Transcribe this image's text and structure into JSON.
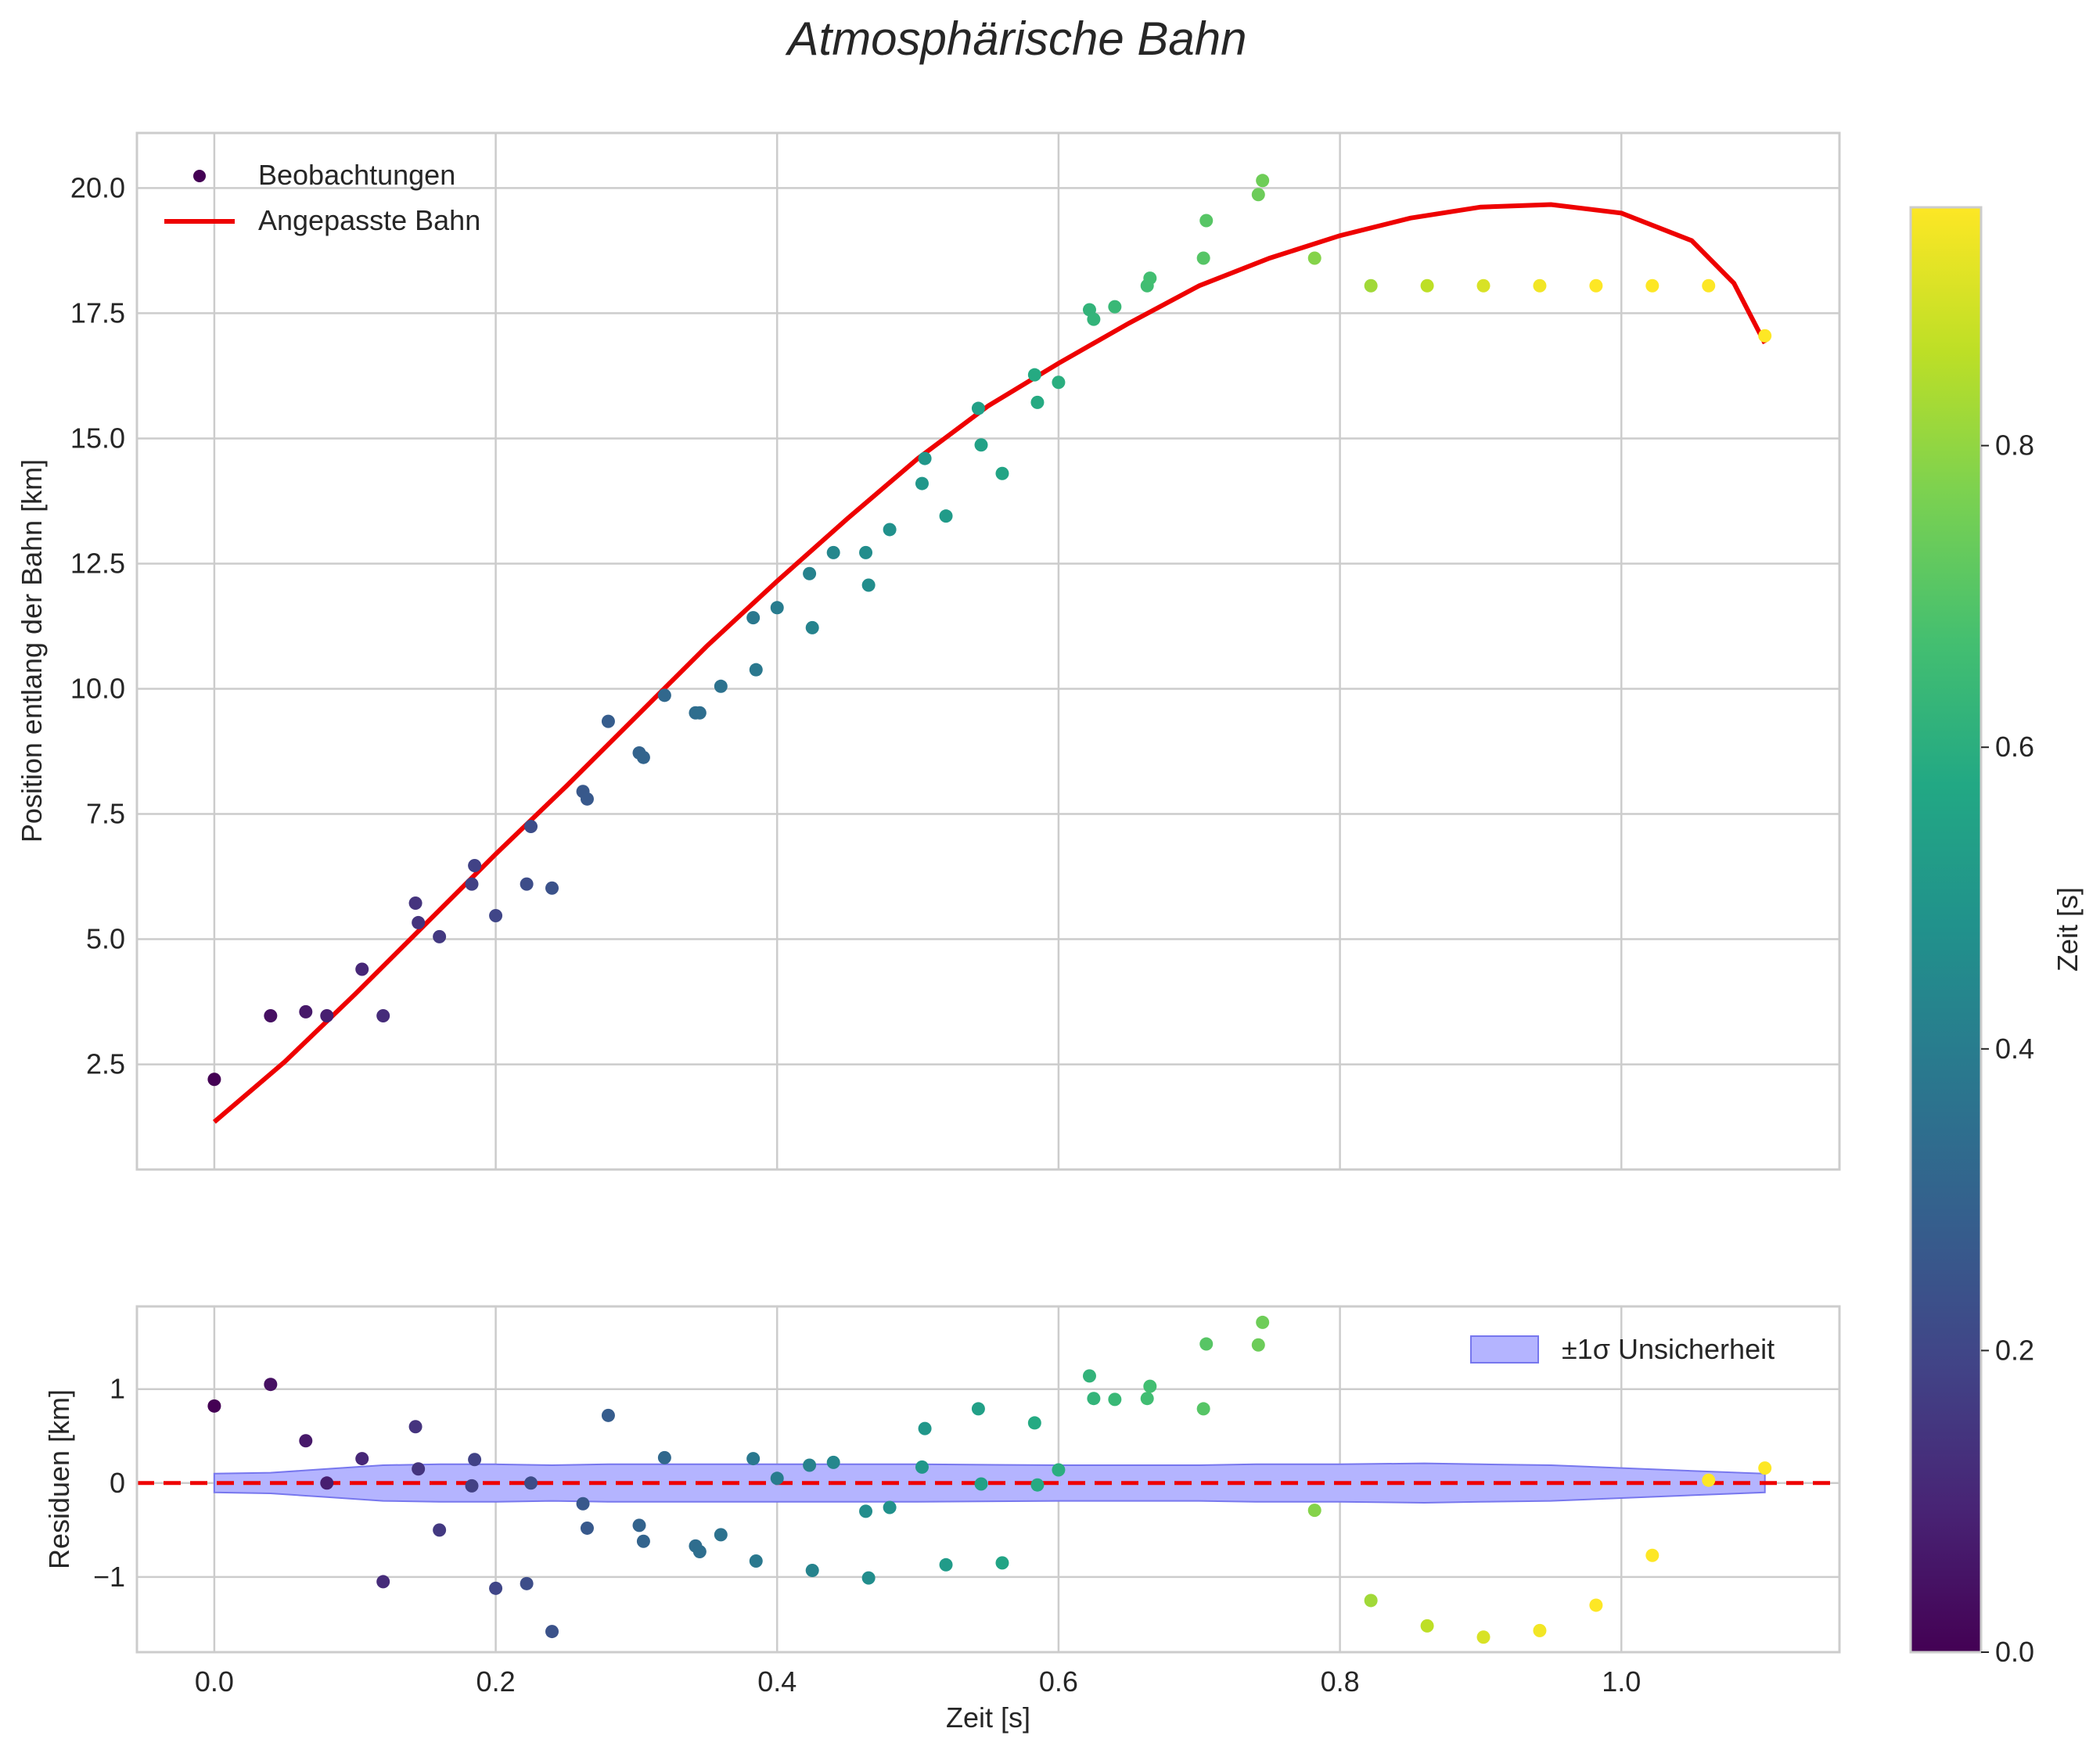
{
  "figure": {
    "title": "Atmosphärische Bahn"
  },
  "colors": {
    "fit_line": "#ee0000",
    "zero_line": "#ee0000",
    "band_fill": "#b4b4ff",
    "band_edge": "#7777ee",
    "grid": "#cccccc",
    "axes_edge": "#cccccc",
    "text": "#262626"
  },
  "chart_data": [
    {
      "id": "main",
      "type": "scatter",
      "ylabel": "Position entlang der Bahn [km]",
      "xlim": [
        -0.055,
        1.155
      ],
      "ylim": [
        0.4,
        21.1
      ],
      "yticks": [
        2.5,
        5.0,
        7.5,
        10.0,
        12.5,
        15.0,
        17.5,
        20.0
      ],
      "ytick_labels": [
        "2.5",
        "5.0",
        "7.5",
        "10.0",
        "12.5",
        "15.0",
        "17.5",
        "20.0"
      ],
      "xticks": [
        0.0,
        0.2,
        0.4,
        0.6,
        0.8,
        1.0
      ],
      "grid": true,
      "legend": {
        "position": "upper-left",
        "entries": [
          "Beobachtungen",
          "Angepasste Bahn"
        ]
      },
      "series": [
        {
          "name": "Beobachtungen",
          "kind": "scatter",
          "colored_by": "Zeit [s]",
          "points": [
            [
              0.0,
              2.2
            ],
            [
              0.04,
              3.47
            ],
            [
              0.065,
              3.55
            ],
            [
              0.08,
              3.47
            ],
            [
              0.105,
              4.4
            ],
            [
              0.12,
              3.47
            ],
            [
              0.143,
              5.72
            ],
            [
              0.145,
              5.33
            ],
            [
              0.16,
              5.05
            ],
            [
              0.183,
              6.1
            ],
            [
              0.185,
              6.47
            ],
            [
              0.2,
              5.47
            ],
            [
              0.222,
              6.1
            ],
            [
              0.225,
              7.25
            ],
            [
              0.24,
              6.02
            ],
            [
              0.262,
              7.95
            ],
            [
              0.265,
              7.8
            ],
            [
              0.28,
              9.35
            ],
            [
              0.302,
              8.72
            ],
            [
              0.305,
              8.63
            ],
            [
              0.32,
              9.87
            ],
            [
              0.342,
              9.52
            ],
            [
              0.345,
              9.52
            ],
            [
              0.36,
              10.05
            ],
            [
              0.383,
              11.42
            ],
            [
              0.385,
              10.38
            ],
            [
              0.4,
              11.62
            ],
            [
              0.423,
              12.3
            ],
            [
              0.425,
              11.22
            ],
            [
              0.44,
              12.72
            ],
            [
              0.463,
              12.72
            ],
            [
              0.465,
              12.07
            ],
            [
              0.48,
              13.18
            ],
            [
              0.503,
              14.1
            ],
            [
              0.505,
              14.6
            ],
            [
              0.52,
              13.45
            ],
            [
              0.543,
              15.6
            ],
            [
              0.545,
              14.87
            ],
            [
              0.56,
              14.3
            ],
            [
              0.583,
              16.27
            ],
            [
              0.585,
              15.72
            ],
            [
              0.6,
              16.12
            ],
            [
              0.622,
              17.57
            ],
            [
              0.625,
              17.38
            ],
            [
              0.64,
              17.63
            ],
            [
              0.663,
              18.05
            ],
            [
              0.665,
              18.2
            ],
            [
              0.703,
              18.6
            ],
            [
              0.705,
              19.35
            ],
            [
              0.742,
              19.87
            ],
            [
              0.745,
              20.15
            ],
            [
              0.782,
              18.6
            ],
            [
              0.822,
              18.05
            ],
            [
              0.862,
              18.05
            ],
            [
              0.902,
              18.05
            ],
            [
              0.942,
              18.05
            ],
            [
              0.982,
              18.05
            ],
            [
              1.022,
              18.05
            ],
            [
              1.062,
              18.05
            ],
            [
              1.102,
              17.05
            ]
          ]
        },
        {
          "name": "Angepasste Bahn",
          "kind": "line",
          "points": [
            [
              0.0,
              1.35
            ],
            [
              0.05,
              2.55
            ],
            [
              0.1,
              3.9
            ],
            [
              0.15,
              5.3
            ],
            [
              0.2,
              6.7
            ],
            [
              0.25,
              8.05
            ],
            [
              0.3,
              9.45
            ],
            [
              0.35,
              10.85
            ],
            [
              0.4,
              12.15
            ],
            [
              0.45,
              13.4
            ],
            [
              0.5,
              14.6
            ],
            [
              0.55,
              15.65
            ],
            [
              0.6,
              16.5
            ],
            [
              0.65,
              17.3
            ],
            [
              0.7,
              18.05
            ],
            [
              0.75,
              18.6
            ],
            [
              0.8,
              19.05
            ],
            [
              0.85,
              19.4
            ],
            [
              0.9,
              19.62
            ],
            [
              0.95,
              19.67
            ],
            [
              1.0,
              19.5
            ],
            [
              1.05,
              18.95
            ],
            [
              1.08,
              18.1
            ],
            [
              1.102,
              16.9
            ]
          ]
        }
      ]
    },
    {
      "id": "residuals",
      "type": "scatter",
      "xlabel": "Zeit [s]",
      "ylabel": "Residuen [km]",
      "xlim": [
        -0.055,
        1.155
      ],
      "ylim": [
        -1.8,
        1.88
      ],
      "yticks": [
        -1,
        0,
        1
      ],
      "ytick_labels": [
        "−1",
        "0",
        "1"
      ],
      "xticks": [
        0.0,
        0.2,
        0.4,
        0.6,
        0.8,
        1.0
      ],
      "xtick_labels": [
        "0.0",
        "0.2",
        "0.4",
        "0.6",
        "0.8",
        "1.0"
      ],
      "grid": true,
      "legend": {
        "position": "upper-right",
        "entries": [
          "±1σ Unsicherheit"
        ]
      },
      "series": [
        {
          "name": "Residuen",
          "kind": "scatter",
          "colored_by": "Zeit [s]",
          "points": [
            [
              0.0,
              0.82
            ],
            [
              0.04,
              1.05
            ],
            [
              0.065,
              0.45
            ],
            [
              0.08,
              0.0
            ],
            [
              0.105,
              0.26
            ],
            [
              0.12,
              -1.05
            ],
            [
              0.143,
              0.6
            ],
            [
              0.145,
              0.15
            ],
            [
              0.16,
              -0.5
            ],
            [
              0.183,
              -0.03
            ],
            [
              0.185,
              0.25
            ],
            [
              0.2,
              -1.12
            ],
            [
              0.222,
              -1.07
            ],
            [
              0.225,
              0.0
            ],
            [
              0.24,
              -1.58
            ],
            [
              0.262,
              -0.22
            ],
            [
              0.265,
              -0.48
            ],
            [
              0.28,
              0.72
            ],
            [
              0.302,
              -0.45
            ],
            [
              0.305,
              -0.62
            ],
            [
              0.32,
              0.27
            ],
            [
              0.342,
              -0.67
            ],
            [
              0.345,
              -0.73
            ],
            [
              0.36,
              -0.55
            ],
            [
              0.383,
              0.26
            ],
            [
              0.385,
              -0.83
            ],
            [
              0.4,
              0.05
            ],
            [
              0.423,
              0.19
            ],
            [
              0.425,
              -0.93
            ],
            [
              0.44,
              0.22
            ],
            [
              0.463,
              -0.3
            ],
            [
              0.465,
              -1.01
            ],
            [
              0.48,
              -0.26
            ],
            [
              0.503,
              0.17
            ],
            [
              0.505,
              0.58
            ],
            [
              0.52,
              -0.87
            ],
            [
              0.543,
              0.79
            ],
            [
              0.545,
              -0.01
            ],
            [
              0.56,
              -0.85
            ],
            [
              0.583,
              0.64
            ],
            [
              0.585,
              -0.02
            ],
            [
              0.6,
              0.14
            ],
            [
              0.622,
              1.14
            ],
            [
              0.625,
              0.9
            ],
            [
              0.64,
              0.89
            ],
            [
              0.663,
              0.9
            ],
            [
              0.665,
              1.03
            ],
            [
              0.703,
              0.79
            ],
            [
              0.705,
              1.48
            ],
            [
              0.742,
              1.47
            ],
            [
              0.745,
              1.71
            ],
            [
              0.782,
              -0.29
            ],
            [
              0.822,
              -1.25
            ],
            [
              0.862,
              -1.52
            ],
            [
              0.902,
              -1.64
            ],
            [
              0.942,
              -1.57
            ],
            [
              0.982,
              -1.3
            ],
            [
              1.022,
              -0.77
            ],
            [
              1.062,
              0.03
            ],
            [
              1.102,
              0.16
            ]
          ]
        },
        {
          "name": "±1σ Unsicherheit",
          "kind": "band",
          "x": [
            0.0,
            0.04,
            0.08,
            0.12,
            0.16,
            0.2,
            0.24,
            0.28,
            0.32,
            0.4,
            0.5,
            0.6,
            0.7,
            0.74,
            0.8,
            0.86,
            0.9,
            0.95,
            1.0,
            1.05,
            1.102
          ],
          "sigma": [
            0.1,
            0.11,
            0.15,
            0.19,
            0.2,
            0.2,
            0.19,
            0.2,
            0.2,
            0.2,
            0.2,
            0.19,
            0.19,
            0.2,
            0.2,
            0.21,
            0.2,
            0.19,
            0.16,
            0.13,
            0.1
          ]
        },
        {
          "name": "Nulllinie",
          "kind": "hline",
          "y": 0
        }
      ]
    }
  ],
  "colorbar": {
    "label": "Zeit [s]",
    "range": [
      0.0,
      0.958
    ],
    "ticks": [
      0.0,
      0.2,
      0.4,
      0.6,
      0.8
    ],
    "tick_labels": [
      "0.0",
      "0.2",
      "0.4",
      "0.6",
      "0.8"
    ],
    "colormap": "viridis"
  }
}
